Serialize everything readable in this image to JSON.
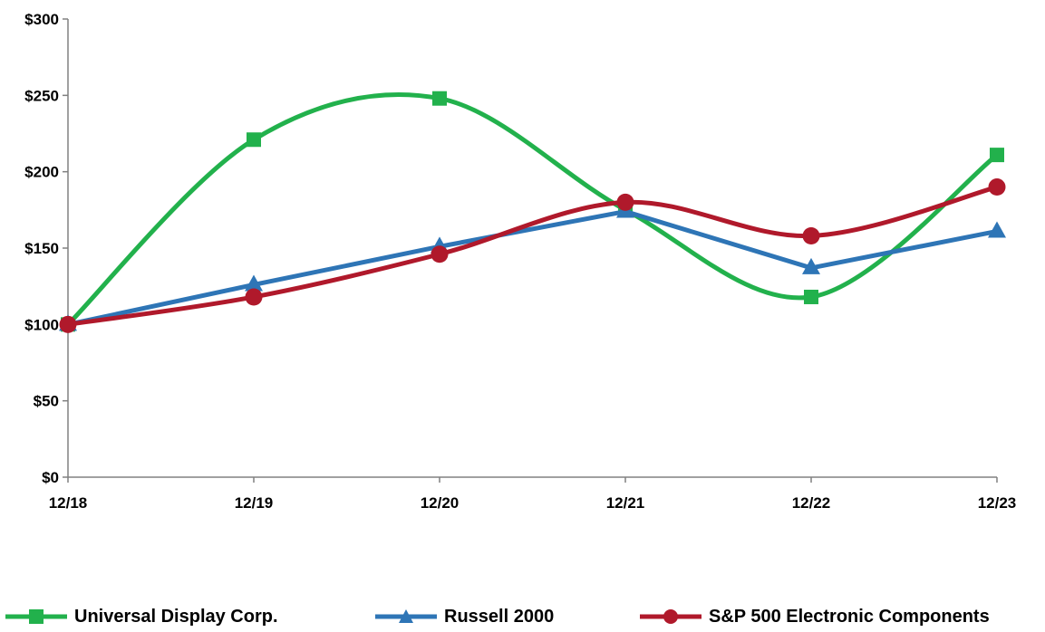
{
  "chart_data": {
    "type": "line",
    "categories": [
      "12/18",
      "12/19",
      "12/20",
      "12/21",
      "12/22",
      "12/23"
    ],
    "yticks": [
      "$0",
      "$50",
      "$100",
      "$150",
      "$200",
      "$250",
      "$300"
    ],
    "ylim": [
      0,
      300
    ],
    "series": [
      {
        "name": "Universal Display Corp.",
        "values": [
          100,
          221,
          248,
          175,
          118,
          211
        ],
        "color": "#22b14c",
        "marker": "square"
      },
      {
        "name": "Russell 2000",
        "values": [
          100,
          126,
          151,
          174,
          137,
          161
        ],
        "color": "#2e75b6",
        "marker": "triangle"
      },
      {
        "name": "S&P 500 Electronic Components",
        "values": [
          100,
          118,
          146,
          180,
          158,
          190
        ],
        "color": "#b0192b",
        "marker": "circle"
      }
    ],
    "legend_position": "bottom",
    "grid": false
  }
}
